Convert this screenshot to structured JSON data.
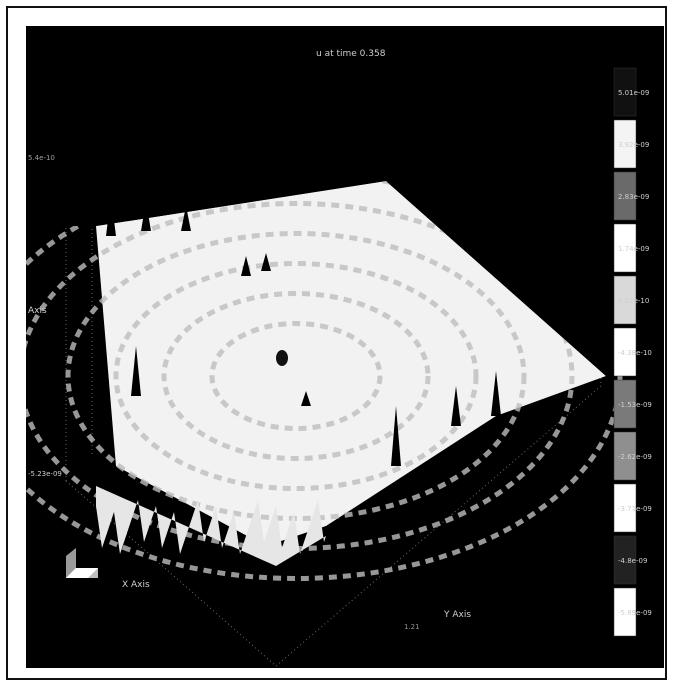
{
  "chart_data": {
    "type": "surface",
    "title": "u at time 0.358",
    "x_axis_label": "X Axis",
    "y_axis_label": "Y Axis",
    "z_axis_label": "Axis",
    "z_tick_top": "5.4e-10",
    "z_tick_bottom": "-5.23e-09",
    "y_tick_end": "1.21",
    "colorbar": {
      "min": -5.89e-09,
      "max": 5.01e-09,
      "levels": [
        {
          "label": "5.01e-09",
          "value": 5.01e-09,
          "color": "#111111"
        },
        {
          "label": "3.92e-09",
          "value": 3.92e-09,
          "color": "#f4f4f4"
        },
        {
          "label": "2.83e-09",
          "value": 2.83e-09,
          "color": "#6a6a6a"
        },
        {
          "label": "1.74e-09",
          "value": 1.74e-09,
          "color": "#ffffff"
        },
        {
          "label": "6.52e-10",
          "value": 6.52e-10,
          "color": "#d9d9d9"
        },
        {
          "label": "-4.38e-10",
          "value": -4.38e-10,
          "color": "#ffffff"
        },
        {
          "label": "-1.53e-09",
          "value": -1.53e-09,
          "color": "#7a7a7a"
        },
        {
          "label": "-2.62e-09",
          "value": -2.62e-09,
          "color": "#8f8f8f"
        },
        {
          "label": "-3.71e-09",
          "value": -3.71e-09,
          "color": "#ffffff"
        },
        {
          "label": "-4.8e-09",
          "value": -4.8e-09,
          "color": "#222222"
        },
        {
          "label": "-5.89e-09",
          "value": -5.89e-09,
          "color": "#ffffff"
        }
      ]
    },
    "grid": false,
    "legend": "colorbar-right"
  }
}
